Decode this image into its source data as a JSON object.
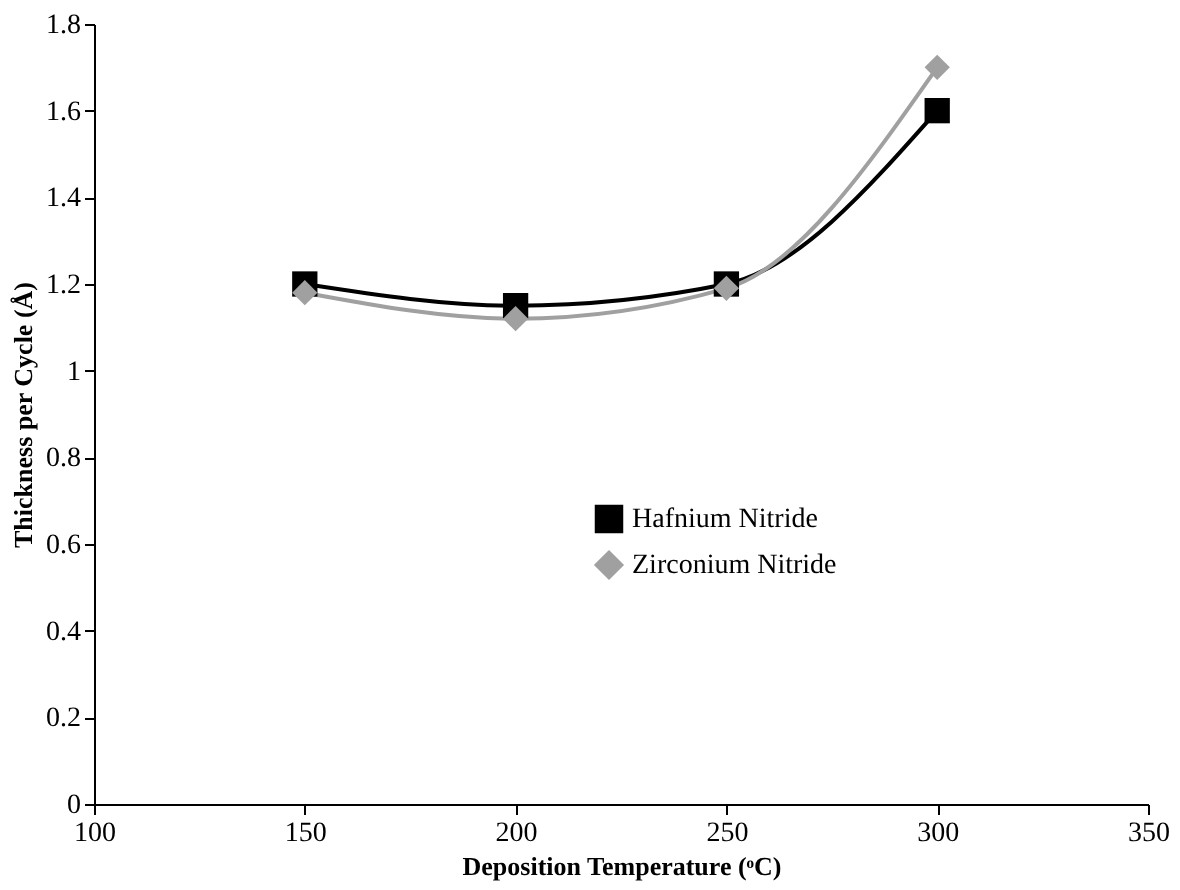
{
  "chart_data": {
    "type": "line",
    "xlabel": "Deposition Temperature (ᵒC)",
    "ylabel": "Thickness per Cycle (Å)",
    "x": [
      150,
      200,
      250,
      300
    ],
    "series": [
      {
        "name": "Hafnium Nitride",
        "color": "#000000",
        "marker": "square",
        "values": [
          1.2,
          1.15,
          1.2,
          1.6
        ]
      },
      {
        "name": "Zirconium Nitride",
        "color": "#a0a0a0",
        "marker": "diamond",
        "values": [
          1.18,
          1.12,
          1.19,
          1.7
        ]
      }
    ],
    "xlim": [
      100,
      350
    ],
    "xticks": [
      100,
      150,
      200,
      250,
      300,
      350
    ],
    "ylim": [
      0,
      1.8
    ],
    "yticks": [
      0,
      0.2,
      0.4,
      0.6,
      0.8,
      1,
      1.2,
      1.4,
      1.6,
      1.8
    ],
    "grid": false,
    "legend": "bottom right",
    "line_style": "solid"
  }
}
